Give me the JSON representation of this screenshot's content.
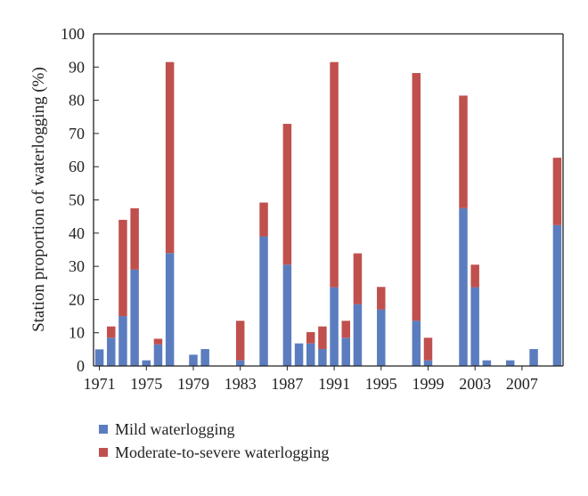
{
  "chart_data": {
    "type": "bar",
    "stacked": true,
    "ylabel": "Station proportion of waterlogging (%)",
    "xlabel": "",
    "ylim": [
      0,
      100
    ],
    "yticks": [
      0,
      10,
      20,
      30,
      40,
      50,
      60,
      70,
      80,
      90,
      100
    ],
    "xtick_labels": [
      "1971",
      "1975",
      "1979",
      "1983",
      "1987",
      "1991",
      "1995",
      "1999",
      "2003",
      "2007"
    ],
    "years": [
      1971,
      1972,
      1973,
      1974,
      1975,
      1976,
      1977,
      1978,
      1979,
      1980,
      1981,
      1982,
      1983,
      1984,
      1985,
      1986,
      1987,
      1988,
      1989,
      1990,
      1991,
      1992,
      1993,
      1994,
      1995,
      1996,
      1997,
      1998,
      1999,
      2000,
      2001,
      2002,
      2003,
      2004,
      2005,
      2006,
      2007,
      2008,
      2009,
      2010
    ],
    "series": [
      {
        "name": "Mild waterlogging",
        "color": "#5b7dbf",
        "values": [
          5,
          8.5,
          15,
          29,
          1.7,
          6.5,
          34,
          0,
          3.4,
          5.1,
          0,
          0,
          1.7,
          0,
          39,
          0,
          30.5,
          6.8,
          6.8,
          5.1,
          23.7,
          8.5,
          18.6,
          0,
          17,
          0,
          0,
          13.6,
          1.7,
          0,
          0,
          47.5,
          23.7,
          1.7,
          0,
          1.7,
          0,
          5.1,
          0,
          42.4
        ]
      },
      {
        "name": "Moderate-to-severe waterlogging",
        "color": "#c0504d",
        "values": [
          0,
          3.4,
          29,
          18.5,
          0,
          1.7,
          57.5,
          0,
          0,
          0,
          0,
          0,
          11.9,
          0,
          10.2,
          0,
          42.4,
          0,
          3.4,
          6.8,
          67.8,
          5.1,
          15.3,
          0,
          6.8,
          0,
          0,
          74.6,
          6.8,
          0,
          0,
          33.9,
          6.8,
          0,
          0,
          0,
          0,
          0,
          0,
          20.3
        ]
      }
    ],
    "legend_position": "bottom-left",
    "grid": false
  }
}
